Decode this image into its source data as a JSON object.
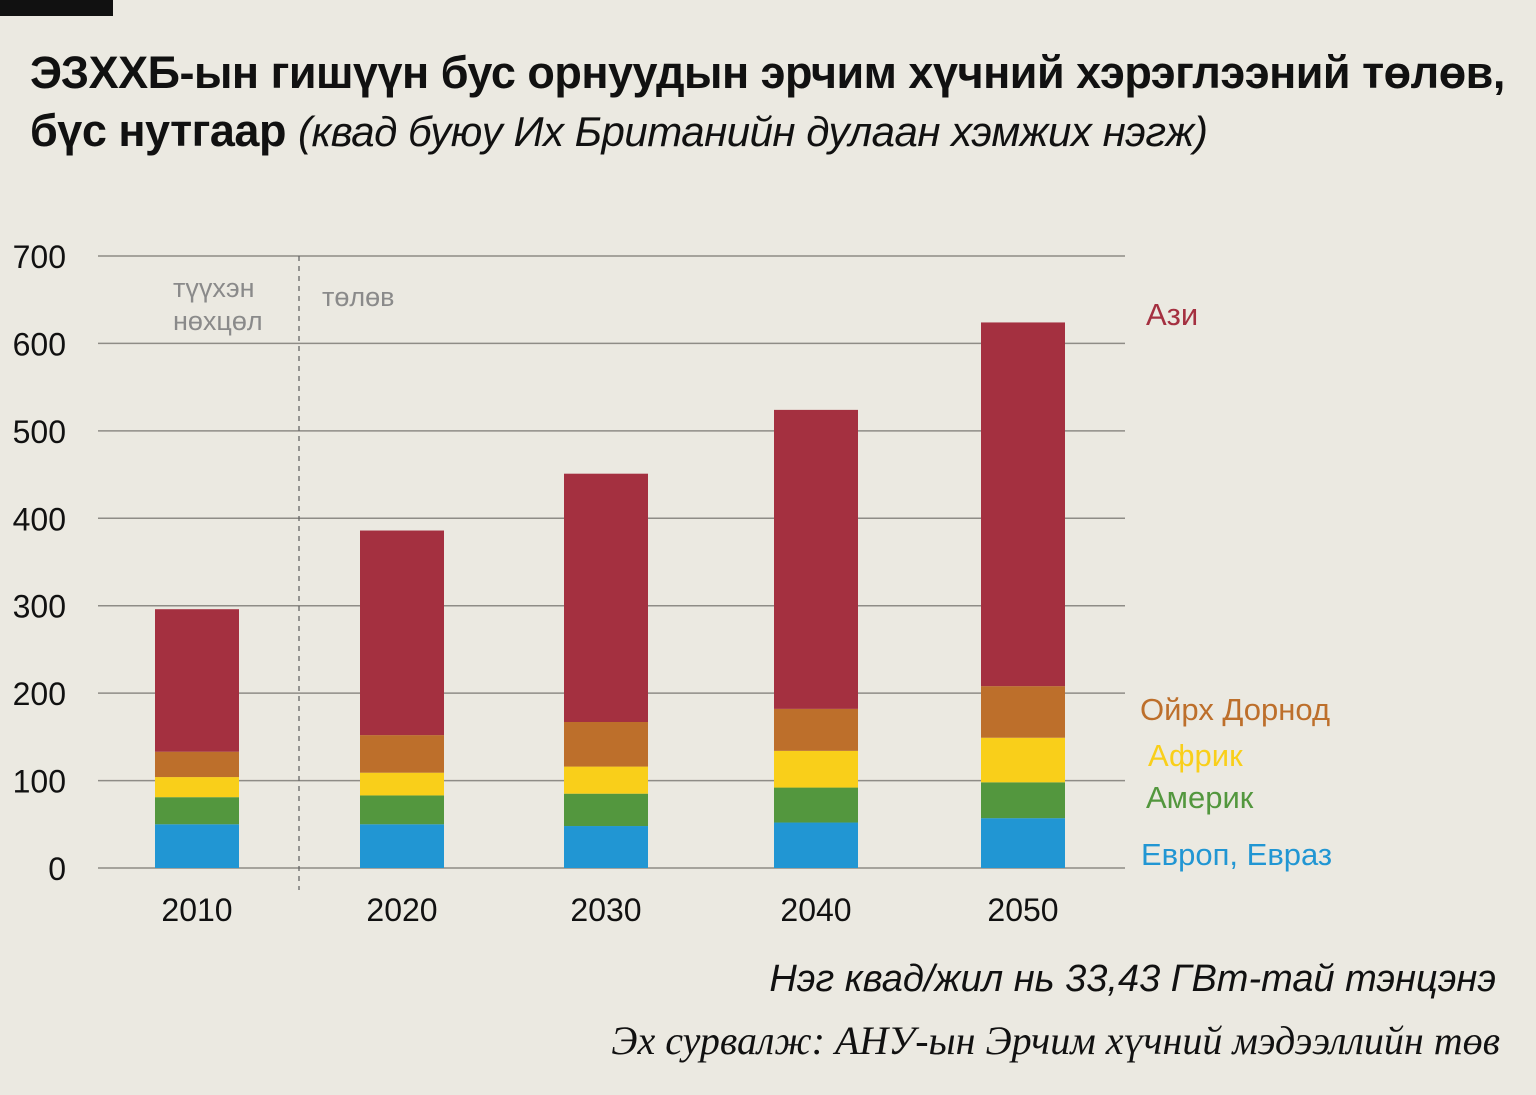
{
  "title": {
    "main_line1": "ЭЗХХБ-ын гишүүн бус орнуудын эрчим хүчний хэрэглээний төлөв,",
    "main_line2": "бүс нутгаар",
    "subtitle": "(квад буюу Их Британийн дулаан хэмжих нэгж)"
  },
  "chart_data": {
    "type": "bar",
    "stacked": true,
    "categories": [
      "2010",
      "2020",
      "2030",
      "2040",
      "2050"
    ],
    "series": [
      {
        "name": "Европ, Евраз",
        "color": "#2196d3",
        "values": [
          50,
          50,
          48,
          52,
          57
        ]
      },
      {
        "name": "Америк",
        "color": "#53973e",
        "values": [
          31,
          33,
          37,
          40,
          41
        ]
      },
      {
        "name": "Африк",
        "color": "#f9cf1a",
        "values": [
          23,
          26,
          31,
          42,
          51
        ]
      },
      {
        "name": "Ойрх Дорнод",
        "color": "#bd6f2b",
        "values": [
          29,
          43,
          51,
          48,
          59
        ]
      },
      {
        "name": "Ази",
        "color": "#a43040",
        "values": [
          163,
          234,
          284,
          342,
          416
        ]
      }
    ],
    "ylim": [
      0,
      700
    ],
    "yticks": [
      0,
      100,
      200,
      300,
      400,
      500,
      600,
      700
    ],
    "grid": true,
    "legend_placement": "right",
    "annotations": {
      "historical": "түүхэн нөхцөл",
      "projection": "төлөв"
    }
  },
  "footnote": "Нэг квад/жил нь 33,43 ГВт-тай тэнцэнэ",
  "source": "Эх сурвалж: АНУ-ын Эрчим хүчний мэдээллийн төв"
}
